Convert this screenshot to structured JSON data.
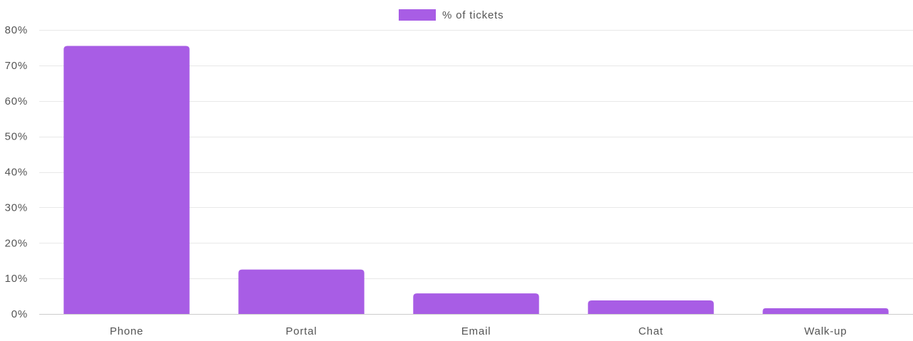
{
  "chart_data": {
    "type": "bar",
    "categories": [
      "Phone",
      "Portal",
      "Email",
      "Chat",
      "Walk-up"
    ],
    "series": [
      {
        "name": "% of tickets",
        "values": [
          75.5,
          12.5,
          5.8,
          3.8,
          1.6
        ],
        "color": "#a85de5"
      }
    ],
    "ylim": [
      0,
      80
    ],
    "yticks": [
      0,
      10,
      20,
      30,
      40,
      50,
      60,
      70,
      80
    ],
    "ytick_suffix": "%",
    "grid": true,
    "legend": "top-center"
  }
}
